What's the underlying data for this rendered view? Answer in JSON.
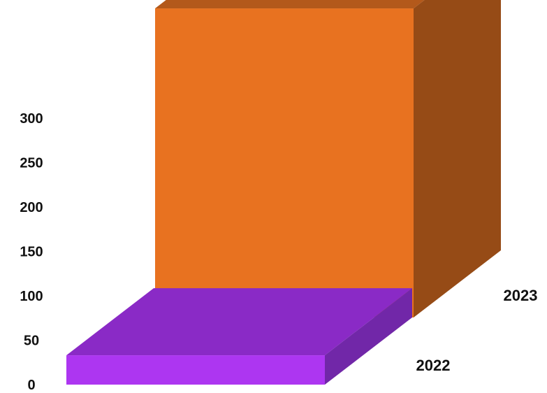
{
  "chart_data": {
    "type": "bar",
    "categories": [
      "2022",
      "2023"
    ],
    "values": [
      33,
      348
    ],
    "ylim": [
      0,
      350
    ],
    "yticks": [
      "0",
      "50",
      "100",
      "150",
      "200",
      "250",
      "300"
    ],
    "grid": false,
    "series_colors": {
      "2022": {
        "front": "#ad36f1",
        "top": "#8a2ac6",
        "side": "#7127a8"
      },
      "2023": {
        "front": "#e87220",
        "top": "#b3591b",
        "side": "#964b16"
      }
    }
  }
}
